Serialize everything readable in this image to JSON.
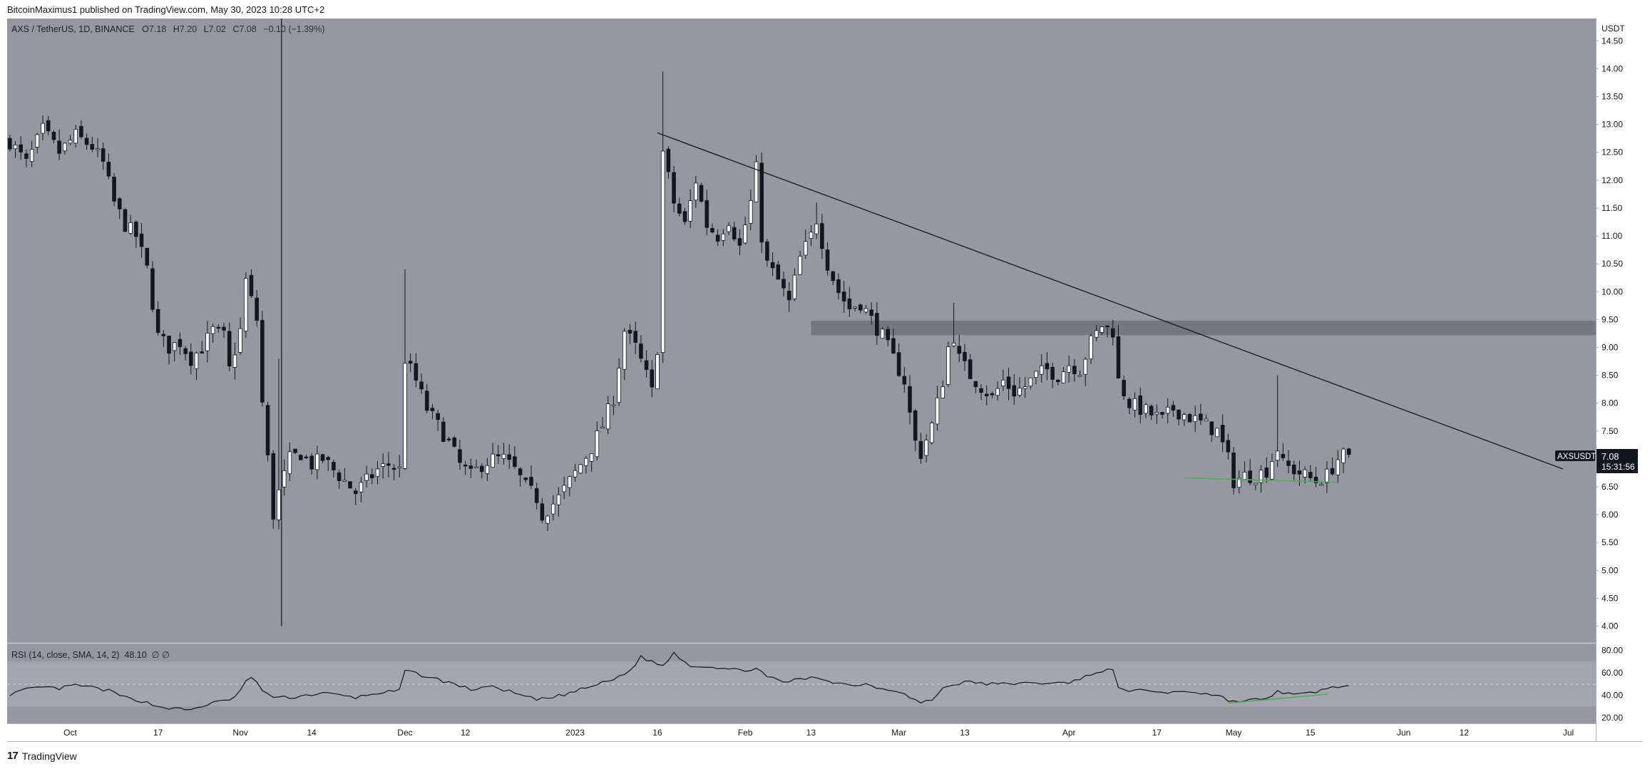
{
  "header": {
    "published": "BitcoinMaximus1 published on TradingView.com, May 30, 2023 10:28 UTC+2"
  },
  "footer": {
    "logo_mark": "17",
    "logo_text": "TradingView"
  },
  "legend": {
    "symbol": "AXS / TetherUS, 1D, BINANCE",
    "open_k": "O",
    "open_v": "7.18",
    "high_k": "H",
    "high_v": "7.20",
    "low_k": "L",
    "low_v": "7.02",
    "close_k": "C",
    "close_v": "7.08",
    "change": "−0.10 (−1.39%)"
  },
  "rsi_legend": {
    "text": "RSI (14, close, SMA, 14, 2)",
    "value": "48.10",
    "extra": "∅ ∅"
  },
  "price_tag": {
    "symbol": "AXSUSDT",
    "price": "7.08",
    "countdown": "15:31:56"
  },
  "colors": {
    "pane_bg": "#9598a1",
    "up": "#ffffff",
    "down": "#131722",
    "resistance_zone": "#6e7178",
    "support_line": "#4caf50"
  },
  "chart_data": {
    "type": "candlestick",
    "title": "AXS / TetherUS, 1D, BINANCE",
    "currency": "USDT",
    "y_ticks": [
      "4.00",
      "4.50",
      "5.00",
      "5.50",
      "6.00",
      "6.50",
      "7.00",
      "7.50",
      "8.00",
      "8.50",
      "9.00",
      "9.50",
      "10.00",
      "10.50",
      "11.00",
      "11.50",
      "12.00",
      "12.50",
      "13.00",
      "13.50",
      "14.00",
      "14.50"
    ],
    "ylim": [
      3.7,
      14.9
    ],
    "x_ticks": [
      {
        "label": "Oct",
        "day": 0
      },
      {
        "label": "17",
        "day": 16
      },
      {
        "label": "Nov",
        "day": 31
      },
      {
        "label": "14",
        "day": 44
      },
      {
        "label": "Dec",
        "day": 61
      },
      {
        "label": "12",
        "day": 72
      },
      {
        "label": "2023",
        "day": 92
      },
      {
        "label": "16",
        "day": 107
      },
      {
        "label": "Feb",
        "day": 123
      },
      {
        "label": "13",
        "day": 135
      },
      {
        "label": "Mar",
        "day": 151
      },
      {
        "label": "13",
        "day": 163
      },
      {
        "label": "Apr",
        "day": 182
      },
      {
        "label": "17",
        "day": 198
      },
      {
        "label": "May",
        "day": 212
      },
      {
        "label": "15",
        "day": 226
      },
      {
        "label": "Jun",
        "day": 243
      },
      {
        "label": "12",
        "day": 254
      },
      {
        "label": "Jul",
        "day": 273
      }
    ],
    "x_range_days": [
      -11.5,
      278
    ],
    "anchors": [
      [
        -11,
        12.7
      ],
      [
        -8,
        12.3
      ],
      [
        -5,
        12.9
      ],
      [
        -2,
        12.5
      ],
      [
        1,
        12.8
      ],
      [
        4,
        12.6
      ],
      [
        6,
        12.3
      ],
      [
        8,
        11.6
      ],
      [
        10,
        11.2
      ],
      [
        12,
        11.0
      ],
      [
        14,
        10.4
      ],
      [
        16,
        9.2
      ],
      [
        18,
        9.0
      ],
      [
        20,
        9.1
      ],
      [
        22,
        8.8
      ],
      [
        24,
        9.0
      ],
      [
        26,
        9.3
      ],
      [
        28,
        9.2
      ],
      [
        29,
        8.6
      ],
      [
        31,
        9.3
      ],
      [
        32,
        10.2
      ],
      [
        34,
        9.5
      ],
      [
        35,
        8.0
      ],
      [
        36,
        7.0
      ],
      [
        37,
        6.0
      ],
      [
        38,
        6.4
      ],
      [
        40,
        7.0
      ],
      [
        42,
        7.1
      ],
      [
        44,
        6.9
      ],
      [
        46,
        7.0
      ],
      [
        48,
        6.8
      ],
      [
        50,
        6.6
      ],
      [
        52,
        6.4
      ],
      [
        54,
        6.6
      ],
      [
        56,
        6.8
      ],
      [
        58,
        6.9
      ],
      [
        60,
        6.8
      ],
      [
        61,
        8.8
      ],
      [
        63,
        8.4
      ],
      [
        65,
        7.9
      ],
      [
        67,
        7.6
      ],
      [
        69,
        7.3
      ],
      [
        71,
        6.9
      ],
      [
        73,
        6.7
      ],
      [
        75,
        6.9
      ],
      [
        77,
        7.0
      ],
      [
        79,
        7.0
      ],
      [
        81,
        6.8
      ],
      [
        83,
        6.5
      ],
      [
        85,
        6.3
      ],
      [
        86,
        6.0
      ],
      [
        87,
        6.1
      ],
      [
        89,
        6.3
      ],
      [
        91,
        6.6
      ],
      [
        93,
        6.9
      ],
      [
        95,
        7.2
      ],
      [
        97,
        7.6
      ],
      [
        99,
        8.1
      ],
      [
        101,
        9.3
      ],
      [
        103,
        9.0
      ],
      [
        105,
        8.5
      ],
      [
        106,
        8.2
      ],
      [
        107,
        9.0
      ],
      [
        108,
        12.5
      ],
      [
        110,
        11.6
      ],
      [
        112,
        11.2
      ],
      [
        114,
        12.0
      ],
      [
        116,
        11.2
      ],
      [
        118,
        11.0
      ],
      [
        120,
        11.3
      ],
      [
        122,
        10.8
      ],
      [
        124,
        11.6
      ],
      [
        125,
        12.2
      ],
      [
        126,
        11.0
      ],
      [
        127,
        10.5
      ],
      [
        129,
        10.2
      ],
      [
        131,
        9.8
      ],
      [
        133,
        10.6
      ],
      [
        135,
        11.0
      ],
      [
        136,
        11.3
      ],
      [
        138,
        10.5
      ],
      [
        140,
        10.0
      ],
      [
        142,
        9.7
      ],
      [
        144,
        9.8
      ],
      [
        146,
        9.5
      ],
      [
        148,
        9.2
      ],
      [
        150,
        8.8
      ],
      [
        152,
        8.4
      ],
      [
        153,
        7.8
      ],
      [
        154,
        7.3
      ],
      [
        155,
        7.1
      ],
      [
        157,
        7.6
      ],
      [
        159,
        8.4
      ],
      [
        160,
        9.0
      ],
      [
        161,
        9.2
      ],
      [
        162,
        8.8
      ],
      [
        164,
        8.5
      ],
      [
        166,
        8.3
      ],
      [
        168,
        8.1
      ],
      [
        170,
        8.4
      ],
      [
        172,
        8.2
      ],
      [
        174,
        8.3
      ],
      [
        176,
        8.5
      ],
      [
        178,
        8.6
      ],
      [
        180,
        8.5
      ],
      [
        182,
        8.7
      ],
      [
        184,
        8.6
      ],
      [
        186,
        9.1
      ],
      [
        188,
        9.4
      ],
      [
        190,
        9.3
      ],
      [
        191,
        8.4
      ],
      [
        193,
        8.0
      ],
      [
        195,
        7.9
      ],
      [
        197,
        7.8
      ],
      [
        199,
        7.7
      ],
      [
        201,
        7.9
      ],
      [
        203,
        7.8
      ],
      [
        205,
        7.7
      ],
      [
        207,
        7.6
      ],
      [
        209,
        7.5
      ],
      [
        211,
        7.0
      ],
      [
        212,
        6.6
      ],
      [
        214,
        6.7
      ],
      [
        216,
        6.7
      ],
      [
        218,
        6.8
      ],
      [
        220,
        7.2
      ],
      [
        221,
        6.9
      ],
      [
        223,
        6.8
      ],
      [
        225,
        6.7
      ],
      [
        227,
        6.6
      ],
      [
        229,
        6.7
      ],
      [
        231,
        7.0
      ],
      [
        233,
        7.1
      ]
    ],
    "rsi": {
      "ticks": [
        "20.00",
        "40.00",
        "60.00",
        "80.00"
      ],
      "ylim": [
        15,
        86
      ],
      "band": [
        30,
        70
      ],
      "mid": 50,
      "anchors": [
        [
          -11,
          41
        ],
        [
          -8,
          45
        ],
        [
          -5,
          47
        ],
        [
          -2,
          46
        ],
        [
          1,
          49
        ],
        [
          4,
          47
        ],
        [
          7,
          44
        ],
        [
          10,
          38
        ],
        [
          13,
          35
        ],
        [
          16,
          30
        ],
        [
          19,
          28
        ],
        [
          22,
          27
        ],
        [
          25,
          32
        ],
        [
          28,
          35
        ],
        [
          30,
          38
        ],
        [
          32,
          52
        ],
        [
          33,
          56
        ],
        [
          35,
          45
        ],
        [
          37,
          38
        ],
        [
          40,
          38
        ],
        [
          43,
          40
        ],
        [
          46,
          42
        ],
        [
          49,
          40
        ],
        [
          52,
          38
        ],
        [
          56,
          42
        ],
        [
          60,
          44
        ],
        [
          61,
          62
        ],
        [
          64,
          58
        ],
        [
          67,
          54
        ],
        [
          70,
          50
        ],
        [
          73,
          45
        ],
        [
          76,
          48
        ],
        [
          79,
          45
        ],
        [
          82,
          40
        ],
        [
          85,
          36
        ],
        [
          88,
          38
        ],
        [
          91,
          42
        ],
        [
          95,
          48
        ],
        [
          99,
          54
        ],
        [
          102,
          62
        ],
        [
          104,
          74
        ],
        [
          106,
          70
        ],
        [
          108,
          66
        ],
        [
          110,
          78
        ],
        [
          113,
          66
        ],
        [
          116,
          66
        ],
        [
          119,
          64
        ],
        [
          122,
          62
        ],
        [
          125,
          64
        ],
        [
          127,
          56
        ],
        [
          130,
          52
        ],
        [
          133,
          54
        ],
        [
          136,
          56
        ],
        [
          139,
          52
        ],
        [
          142,
          49
        ],
        [
          145,
          50
        ],
        [
          148,
          46
        ],
        [
          151,
          44
        ],
        [
          153,
          38
        ],
        [
          155,
          33
        ],
        [
          157,
          36
        ],
        [
          159,
          46
        ],
        [
          161,
          50
        ],
        [
          164,
          52
        ],
        [
          167,
          50
        ],
        [
          170,
          50
        ],
        [
          173,
          51
        ],
        [
          176,
          50
        ],
        [
          179,
          52
        ],
        [
          182,
          50
        ],
        [
          185,
          58
        ],
        [
          188,
          60
        ],
        [
          190,
          64
        ],
        [
          191,
          46
        ],
        [
          194,
          44
        ],
        [
          197,
          44
        ],
        [
          200,
          42
        ],
        [
          203,
          44
        ],
        [
          206,
          42
        ],
        [
          209,
          40
        ],
        [
          212,
          34
        ],
        [
          215,
          36
        ],
        [
          218,
          36
        ],
        [
          220,
          44
        ],
        [
          223,
          40
        ],
        [
          226,
          42
        ],
        [
          229,
          46
        ],
        [
          231,
          48
        ],
        [
          233,
          48
        ]
      ],
      "divergence_line": [
        [
          211,
          33
        ],
        [
          229,
          41
        ]
      ]
    },
    "annotations": {
      "descending_trendline": [
        [
          107,
          12.85
        ],
        [
          272,
          6.82
        ]
      ],
      "resistance_zone": [
        9.22,
        9.48
      ],
      "resistance_zone_days": [
        135,
        278
      ],
      "support_line": [
        [
          203,
          6.66
        ],
        [
          231,
          6.58
        ]
      ],
      "vertical_line_day": 38.5
    }
  }
}
